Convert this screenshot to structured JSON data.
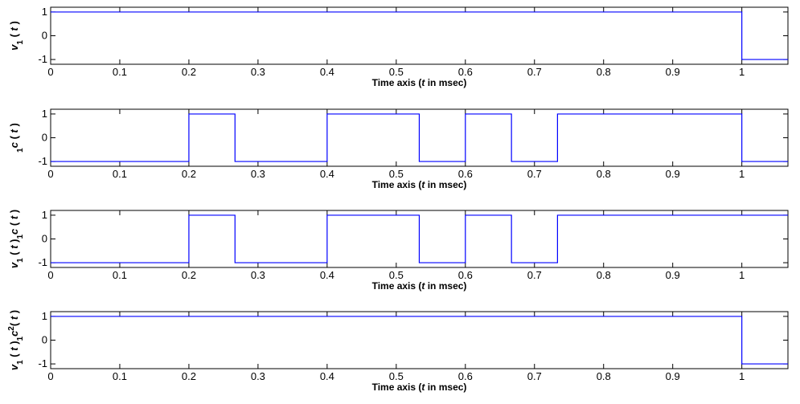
{
  "chart_data": [
    {
      "type": "line",
      "step": true,
      "xlabel_parts": [
        "Time axis (",
        "t",
        " in msec)"
      ],
      "ylabel": "v1(t)",
      "ylabel_parts": [
        {
          "text": "v",
          "italic": true
        },
        {
          "text": "1",
          "sub": true
        },
        {
          "text": " ( "
        },
        {
          "text": "t",
          "italic": true
        },
        {
          "text": " )"
        }
      ],
      "xlim": [
        0,
        1.0667
      ],
      "ylim": [
        -1.2,
        1.2
      ],
      "xticks": [
        0,
        0.1,
        0.2,
        0.3,
        0.4,
        0.5,
        0.6,
        0.7,
        0.8,
        0.9,
        1
      ],
      "xtick_labels": [
        "0",
        "0.1",
        "0.2",
        "0.3",
        "0.4",
        "0.5",
        "0.6",
        "0.7",
        "0.8",
        "0.9",
        "1"
      ],
      "yticks": [
        -1,
        0,
        1
      ],
      "ytick_labels": [
        "-1",
        "0",
        "1"
      ],
      "series": [
        {
          "color": "#0000ff",
          "x": [
            0,
            1,
            1,
            1.0667
          ],
          "y": [
            1,
            1,
            -1,
            -1
          ]
        }
      ]
    },
    {
      "type": "line",
      "step": true,
      "xlabel_parts": [
        "Time axis (",
        "t",
        " in msec)"
      ],
      "ylabel": "1c(t)",
      "ylabel_parts": [
        {
          "text": "1",
          "sub": true
        },
        {
          "text": "c",
          "italic": true
        },
        {
          "text": " ( "
        },
        {
          "text": "t",
          "italic": true
        },
        {
          "text": " )"
        }
      ],
      "xlim": [
        0,
        1.0667
      ],
      "ylim": [
        -1.2,
        1.2
      ],
      "xticks": [
        0,
        0.1,
        0.2,
        0.3,
        0.4,
        0.5,
        0.6,
        0.7,
        0.8,
        0.9,
        1
      ],
      "xtick_labels": [
        "0",
        "0.1",
        "0.2",
        "0.3",
        "0.4",
        "0.5",
        "0.6",
        "0.7",
        "0.8",
        "0.9",
        "1"
      ],
      "yticks": [
        -1,
        0,
        1
      ],
      "ytick_labels": [
        "-1",
        "0",
        "1"
      ],
      "series": [
        {
          "color": "#0000ff",
          "x": [
            0,
            0.2,
            0.2,
            0.2667,
            0.2667,
            0.4,
            0.4,
            0.5333,
            0.5333,
            0.6,
            0.6,
            0.6667,
            0.6667,
            0.7333,
            0.7333,
            1,
            1,
            1.0667
          ],
          "y": [
            -1,
            -1,
            1,
            1,
            -1,
            -1,
            1,
            1,
            -1,
            -1,
            1,
            1,
            -1,
            -1,
            1,
            1,
            -1,
            -1
          ]
        }
      ]
    },
    {
      "type": "line",
      "step": true,
      "xlabel_parts": [
        "Time axis (",
        "t",
        " in msec)"
      ],
      "ylabel": "v1(t)1c(t)",
      "ylabel_parts": [
        {
          "text": "v",
          "italic": true
        },
        {
          "text": "1",
          "sub": true
        },
        {
          "text": " ( "
        },
        {
          "text": "t",
          "italic": true
        },
        {
          "text": " )"
        },
        {
          "text": "1",
          "sub": true
        },
        {
          "text": "c",
          "italic": true
        },
        {
          "text": " ( "
        },
        {
          "text": "t",
          "italic": true
        },
        {
          "text": " )"
        }
      ],
      "xlim": [
        0,
        1.0667
      ],
      "ylim": [
        -1.2,
        1.2
      ],
      "xticks": [
        0,
        0.1,
        0.2,
        0.3,
        0.4,
        0.5,
        0.6,
        0.7,
        0.8,
        0.9,
        1
      ],
      "xtick_labels": [
        "0",
        "0.1",
        "0.2",
        "0.3",
        "0.4",
        "0.5",
        "0.6",
        "0.7",
        "0.8",
        "0.9",
        "1"
      ],
      "yticks": [
        -1,
        0,
        1
      ],
      "ytick_labels": [
        "-1",
        "0",
        "1"
      ],
      "series": [
        {
          "color": "#0000ff",
          "x": [
            0,
            0.2,
            0.2,
            0.2667,
            0.2667,
            0.4,
            0.4,
            0.5333,
            0.5333,
            0.6,
            0.6,
            0.6667,
            0.6667,
            0.7333,
            0.7333,
            1.0667
          ],
          "y": [
            -1,
            -1,
            1,
            1,
            -1,
            -1,
            1,
            1,
            -1,
            -1,
            1,
            1,
            -1,
            -1,
            1,
            1
          ]
        }
      ]
    },
    {
      "type": "line",
      "step": true,
      "xlabel_parts": [
        "Time axis (",
        "t",
        " in msec)"
      ],
      "ylabel": "v1(t)1c2(t)",
      "ylabel_parts": [
        {
          "text": "v",
          "italic": true
        },
        {
          "text": "1",
          "sub": true
        },
        {
          "text": " ( "
        },
        {
          "text": "t",
          "italic": true
        },
        {
          "text": " )"
        },
        {
          "text": "1",
          "sub": true
        },
        {
          "text": "c",
          "italic": true
        },
        {
          "text": "2",
          "sup": true
        },
        {
          "text": "( "
        },
        {
          "text": "t",
          "italic": true
        },
        {
          "text": " )"
        }
      ],
      "xlim": [
        0,
        1.0667
      ],
      "ylim": [
        -1.2,
        1.2
      ],
      "xticks": [
        0,
        0.1,
        0.2,
        0.3,
        0.4,
        0.5,
        0.6,
        0.7,
        0.8,
        0.9,
        1
      ],
      "xtick_labels": [
        "0",
        "0.1",
        "0.2",
        "0.3",
        "0.4",
        "0.5",
        "0.6",
        "0.7",
        "0.8",
        "0.9",
        "1"
      ],
      "yticks": [
        -1,
        0,
        1
      ],
      "ytick_labels": [
        "-1",
        "0",
        "1"
      ],
      "series": [
        {
          "color": "#0000ff",
          "x": [
            0,
            1,
            1,
            1.0667
          ],
          "y": [
            1,
            1,
            -1,
            -1
          ]
        }
      ]
    }
  ]
}
